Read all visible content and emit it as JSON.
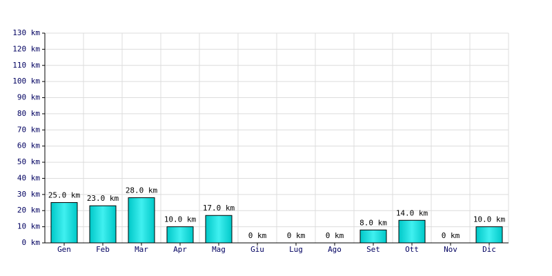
{
  "chart_data": {
    "type": "bar",
    "categories": [
      "Gen",
      "Feb",
      "Mar",
      "Apr",
      "Mag",
      "Giu",
      "Lug",
      "Ago",
      "Set",
      "Ott",
      "Nov",
      "Dic"
    ],
    "values": [
      25,
      23,
      28,
      10,
      17,
      0,
      0,
      0,
      8,
      14,
      0,
      10
    ],
    "value_labels": [
      "25.0 km",
      "23.0 km",
      "28.0 km",
      "10.0 km",
      "17.0 km",
      "0 km",
      "0 km",
      "0 km",
      "8.0 km",
      "14.0 km",
      "0 km",
      "10.0 km"
    ],
    "color": "#00c8c8",
    "ylim": [
      0,
      130
    ],
    "yticks": [
      {
        "value": 0,
        "label": "0 km"
      },
      {
        "value": 10,
        "label": "10 km"
      },
      {
        "value": 20,
        "label": "20 km"
      },
      {
        "value": 30,
        "label": "30 km"
      },
      {
        "value": 40,
        "label": "40 km"
      },
      {
        "value": 50,
        "label": "50 km"
      },
      {
        "value": 60,
        "label": "60 km"
      },
      {
        "value": 70,
        "label": "70 km"
      },
      {
        "value": 80,
        "label": "80 km"
      },
      {
        "value": 90,
        "label": "90 km"
      },
      {
        "value": 100,
        "label": "100 km"
      },
      {
        "value": 110,
        "label": "110 km"
      },
      {
        "value": 120,
        "label": "120 km"
      },
      {
        "value": 130,
        "label": "130 km"
      }
    ],
    "grid": true
  }
}
